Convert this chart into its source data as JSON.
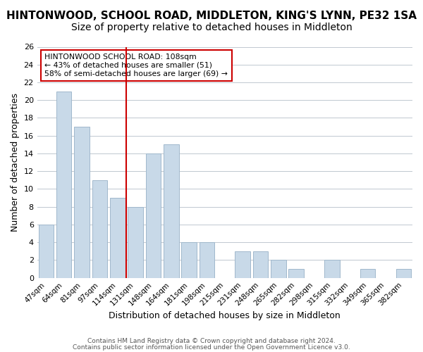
{
  "title": "HINTONWOOD, SCHOOL ROAD, MIDDLETON, KING'S LYNN, PE32 1SA",
  "subtitle": "Size of property relative to detached houses in Middleton",
  "xlabel": "Distribution of detached houses by size in Middleton",
  "ylabel": "Number of detached properties",
  "categories": [
    "47sqm",
    "64sqm",
    "81sqm",
    "97sqm",
    "114sqm",
    "131sqm",
    "148sqm",
    "164sqm",
    "181sqm",
    "198sqm",
    "215sqm",
    "231sqm",
    "248sqm",
    "265sqm",
    "282sqm",
    "298sqm",
    "315sqm",
    "332sqm",
    "349sqm",
    "365sqm",
    "382sqm"
  ],
  "values": [
    6,
    21,
    17,
    11,
    9,
    8,
    14,
    15,
    4,
    4,
    0,
    3,
    3,
    2,
    1,
    0,
    2,
    0,
    1,
    0,
    1
  ],
  "bar_color": "#c8d9e8",
  "bar_edge_color": "#a0b8cc",
  "highlight_index": 4,
  "highlight_line_color": "#cc0000",
  "annotation_text": "HINTONWOOD SCHOOL ROAD: 108sqm\n← 43% of detached houses are smaller (51)\n58% of semi-detached houses are larger (69) →",
  "annotation_box_edge_color": "#cc0000",
  "ylim": [
    0,
    26
  ],
  "yticks": [
    0,
    2,
    4,
    6,
    8,
    10,
    12,
    14,
    16,
    18,
    20,
    22,
    24,
    26
  ],
  "footer1": "Contains HM Land Registry data © Crown copyright and database right 2024.",
  "footer2": "Contains public sector information licensed under the Open Government Licence v3.0.",
  "title_fontsize": 11,
  "subtitle_fontsize": 10,
  "background_color": "#ffffff",
  "grid_color": "#c0c8d0"
}
